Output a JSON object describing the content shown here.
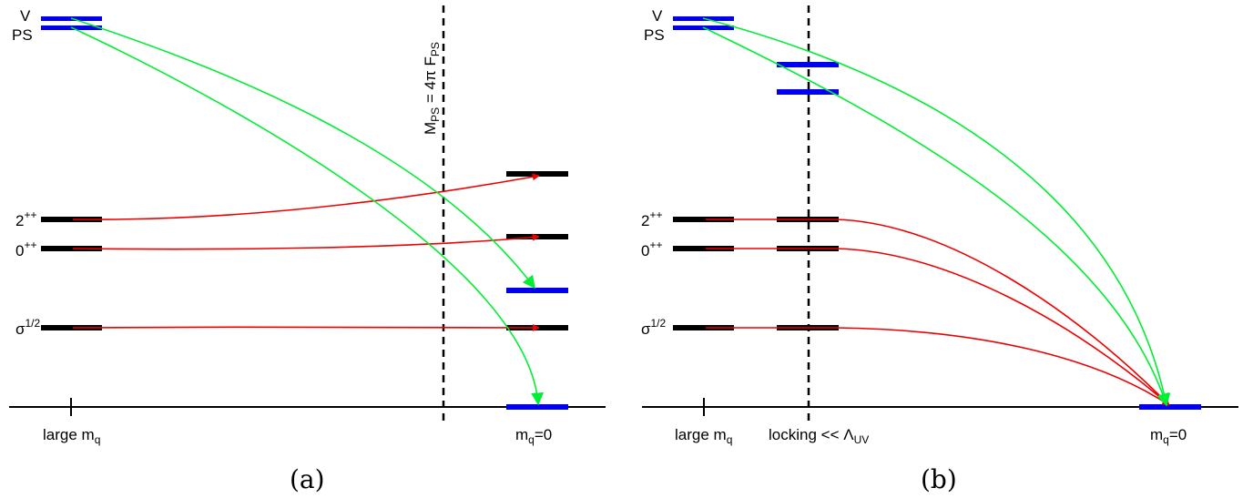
{
  "panel_a": {
    "caption": "(a)",
    "labels": {
      "v": "V",
      "ps": "PS",
      "two_pp": "2",
      "two_pp_sup": "++",
      "zero_pp": "0",
      "zero_pp_sup": "++",
      "sigma": "σ",
      "sigma_sup": "1/2",
      "large_mq": "large m",
      "large_mq_sub": "q",
      "mq0": "m",
      "mq0_sub": "q",
      "mq0_tail": "=0",
      "divider": "M",
      "divider_sub1": "PS",
      "divider_mid": " = 4π F",
      "divider_sub2": "PS"
    }
  },
  "panel_b": {
    "caption": "(b)",
    "labels": {
      "v": "V",
      "ps": "PS",
      "two_pp": "2",
      "two_pp_sup": "++",
      "zero_pp": "0",
      "zero_pp_sup": "++",
      "sigma": "σ",
      "sigma_sup": "1/2",
      "large_mq": "large m",
      "large_mq_sub": "q",
      "locking": "locking << Λ",
      "locking_sub": "UV",
      "mq0": "m",
      "mq0_sub": "q",
      "mq0_tail": "=0"
    }
  },
  "colors": {
    "glueball_level": "#000000",
    "meson_level": "#0000ee",
    "glueball_flow": "#ee0000",
    "meson_flow": "#00ee33",
    "axis": "#000000"
  }
}
